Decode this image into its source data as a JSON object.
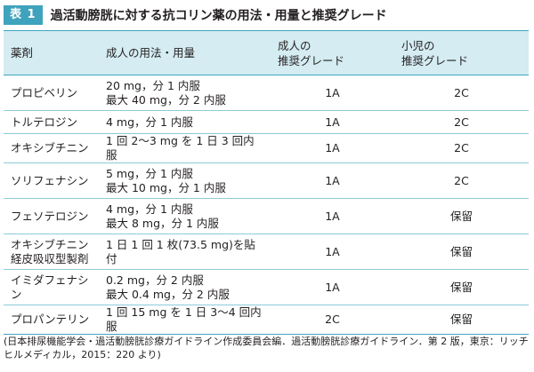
{
  "header": {
    "badge": "表 1",
    "title": "過活動膀胱に対する抗コリン薬の用法・用量と推奨グレード"
  },
  "table": {
    "columns": [
      "薬剤",
      "成人の用法・用量",
      "成人の\n推奨グレード",
      "小児の\n推奨グレード"
    ],
    "rows": [
      {
        "drug": "プロピベリン",
        "dosage": "20 mg，分 1 内服\n最大 40 mg，分 2 内服",
        "adult": "1A",
        "child": "2C"
      },
      {
        "drug": "トルテロジン",
        "dosage": "4 mg，分 1 内服",
        "adult": "1A",
        "child": "2C"
      },
      {
        "drug": "オキシブチニン",
        "dosage": "1 回 2〜3 mg を 1 日 3 回内服",
        "adult": "1A",
        "child": "2C"
      },
      {
        "drug": "ソリフェナシン",
        "dosage": "5 mg，分 1 内服\n最大 10 mg，分 1 内服",
        "adult": "1A",
        "child": "2C"
      },
      {
        "drug": "フェソテロジン",
        "dosage": "4 mg，分 1 内服\n最大 8 mg，分 1 内服",
        "adult": "1A",
        "child": "保留"
      },
      {
        "drug": "オキシブチニン\n経皮吸収型製剤",
        "dosage": "1 日 1 回 1 枚(73.5 mg)を貼付",
        "adult": "1A",
        "child": "保留"
      },
      {
        "drug": "イミダフェナシン",
        "dosage": "0.2 mg，分 2 内服\n最大 0.4 mg，分 2 内服",
        "adult": "1A",
        "child": "保留"
      },
      {
        "drug": "プロパンテリン",
        "dosage": "1 回 15 mg を 1 日 3〜4 回内服",
        "adult": "2C",
        "child": "保留"
      }
    ]
  },
  "footnote": "(日本排尿機能学会・過活動膀胱診療ガイドライン作成委員会編．過活動膀胱診療ガイドライン．第 2 版，東京：リッチヒルメディカル，2015：220 より)",
  "colors": {
    "accent": "#3fa3bd",
    "header_bg": "#d4ecf2",
    "row_line": "#8ccbd9"
  }
}
